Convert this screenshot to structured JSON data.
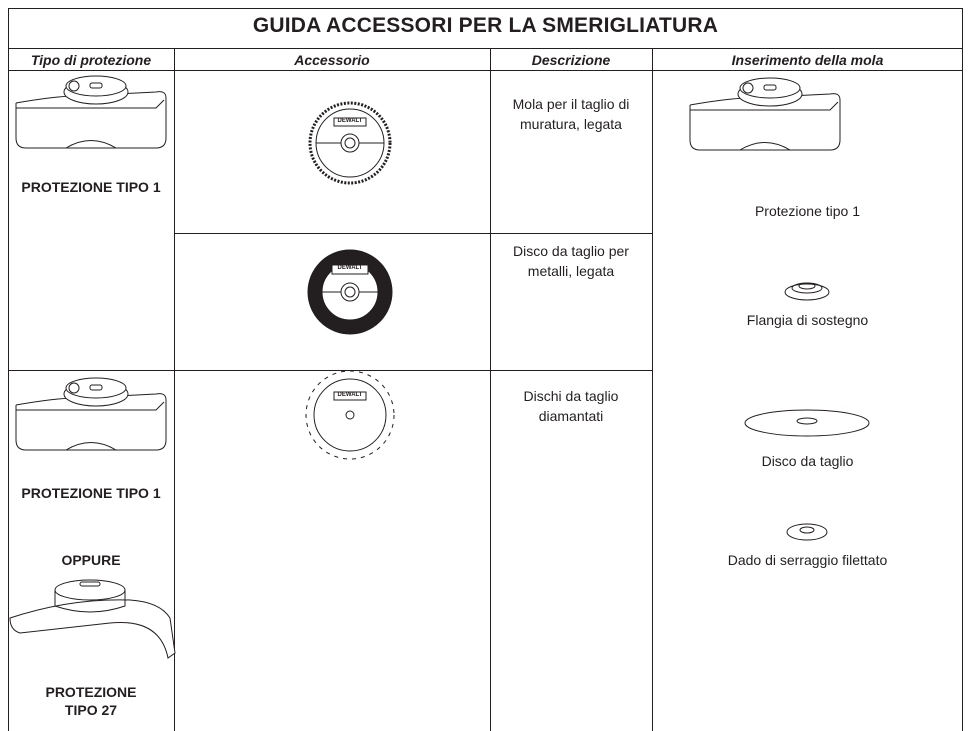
{
  "header": {
    "title": "GUIDA ACCESSORI PER LA SMERIGLIATURA"
  },
  "columns": [
    "Tipo di protezione",
    "Accessorio",
    "Descrizione",
    "Inserimento della mola"
  ],
  "guards": {
    "first": "PROTEZIONE TIPO 1",
    "second": "PROTEZIONE TIPO 1",
    "or": "OPPURE",
    "third": "PROTEZIONE TIPO 27"
  },
  "descriptions": [
    "Mola per il taglio di muratura, legata",
    "Disco da taglio per metalli, legata",
    "Dischi da taglio diamantati"
  ],
  "brand": "DEWALT",
  "mounting": [
    "Protezione tipo 1",
    "Flangia di sostegno",
    "Disco da taglio",
    "Dado di serraggio filettato"
  ]
}
